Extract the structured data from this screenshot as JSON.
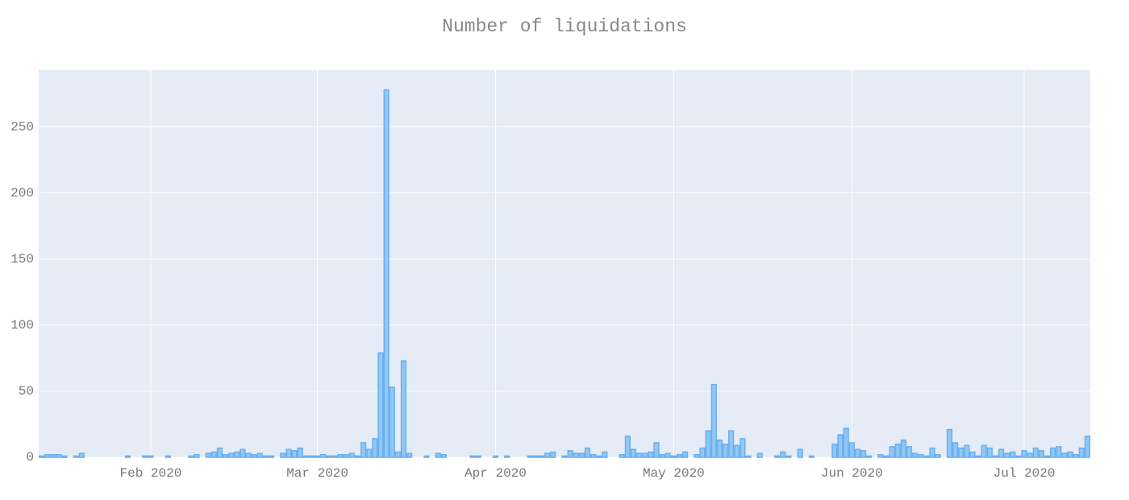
{
  "chart_data": {
    "type": "bar",
    "title": "Number of liquidations",
    "values": [
      1,
      2,
      2,
      2,
      1,
      0,
      1,
      3,
      0,
      0,
      0,
      0,
      0,
      0,
      0,
      1,
      0,
      0,
      1,
      1,
      0,
      0,
      1,
      0,
      0,
      0,
      1,
      2,
      0,
      3,
      4,
      7,
      2,
      3,
      4,
      6,
      3,
      2,
      3,
      1,
      1,
      0,
      3,
      6,
      5,
      7,
      1,
      1,
      1,
      2,
      1,
      1,
      2,
      2,
      3,
      1,
      11,
      6,
      14,
      79,
      278,
      53,
      4,
      73,
      3,
      0,
      0,
      1,
      0,
      3,
      2,
      0,
      0,
      0,
      0,
      1,
      1,
      0,
      0,
      1,
      0,
      1,
      0,
      0,
      0,
      1,
      1,
      1,
      3,
      4,
      0,
      1,
      5,
      3,
      3,
      7,
      2,
      1,
      4,
      0,
      0,
      2,
      16,
      6,
      3,
      3,
      4,
      11,
      2,
      3,
      1,
      2,
      4,
      0,
      2,
      7,
      20,
      55,
      13,
      10,
      20,
      9,
      14,
      1,
      0,
      3,
      0,
      0,
      1,
      4,
      1,
      0,
      6,
      0,
      1,
      0,
      0,
      0,
      10,
      17,
      22,
      11,
      6,
      5,
      1,
      0,
      2,
      1,
      8,
      10,
      13,
      8,
      3,
      2,
      1,
      7,
      2,
      0,
      21,
      11,
      7,
      9,
      4,
      1,
      9,
      7,
      1,
      6,
      3,
      4,
      1,
      5,
      3,
      7,
      5,
      1,
      7,
      8,
      3,
      4,
      2,
      7,
      16
    ],
    "color": "#90c8f6",
    "border_color": "#6aaef0",
    "xlim": [
      -0.5,
      182.5
    ],
    "xticks": [
      {
        "value": 19,
        "label": "Feb 2020"
      },
      {
        "value": 48,
        "label": "Mar 2020"
      },
      {
        "value": 79,
        "label": "Apr 2020"
      },
      {
        "value": 110,
        "label": "May 2020"
      },
      {
        "value": 141,
        "label": "Jun 2020"
      },
      {
        "value": 171,
        "label": "Jul 2020"
      }
    ],
    "ylim": [
      0,
      293
    ],
    "yticks": [
      0,
      50,
      100,
      150,
      200,
      250
    ],
    "grid": true
  }
}
